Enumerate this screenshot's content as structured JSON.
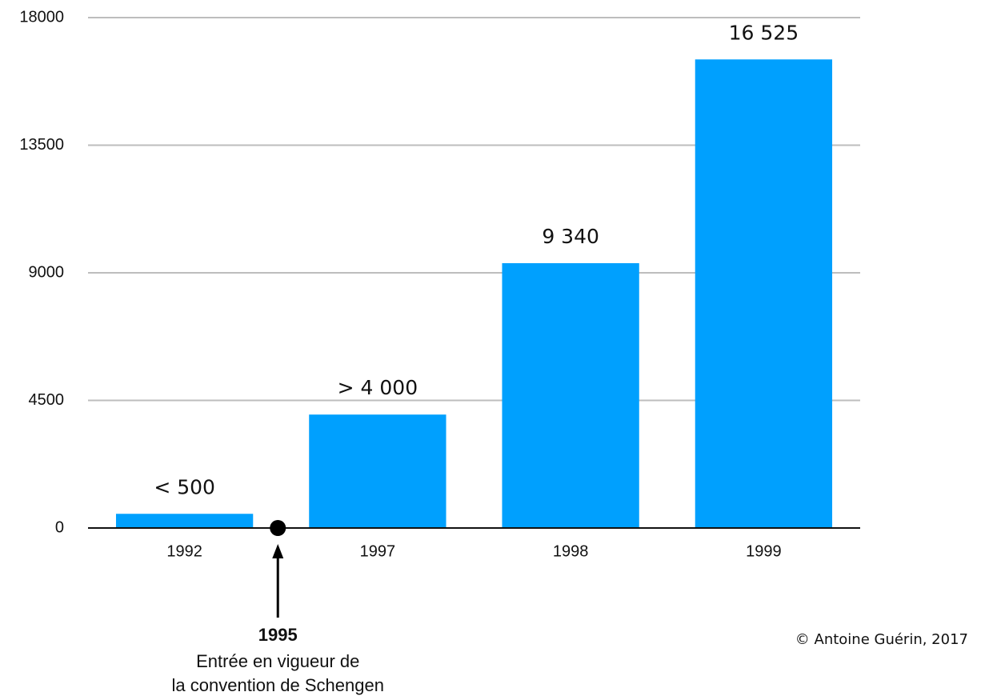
{
  "chart_data": {
    "type": "bar",
    "categories": [
      "1992",
      "1997",
      "1998",
      "1999"
    ],
    "values": [
      500,
      4000,
      9340,
      16525
    ],
    "value_labels": [
      "< 500",
      "> 4 000",
      "9 340",
      "16 525"
    ],
    "color": "#00a0fe",
    "ylim": [
      0,
      18000
    ],
    "yticks": [
      0,
      4500,
      9000,
      13500,
      18000
    ],
    "grid": true,
    "annotation": {
      "label": "1995",
      "lines": [
        "Entrée en vigueur de",
        "la convention de Schengen"
      ]
    },
    "credit": "© Antoine Guérin, 2017"
  }
}
